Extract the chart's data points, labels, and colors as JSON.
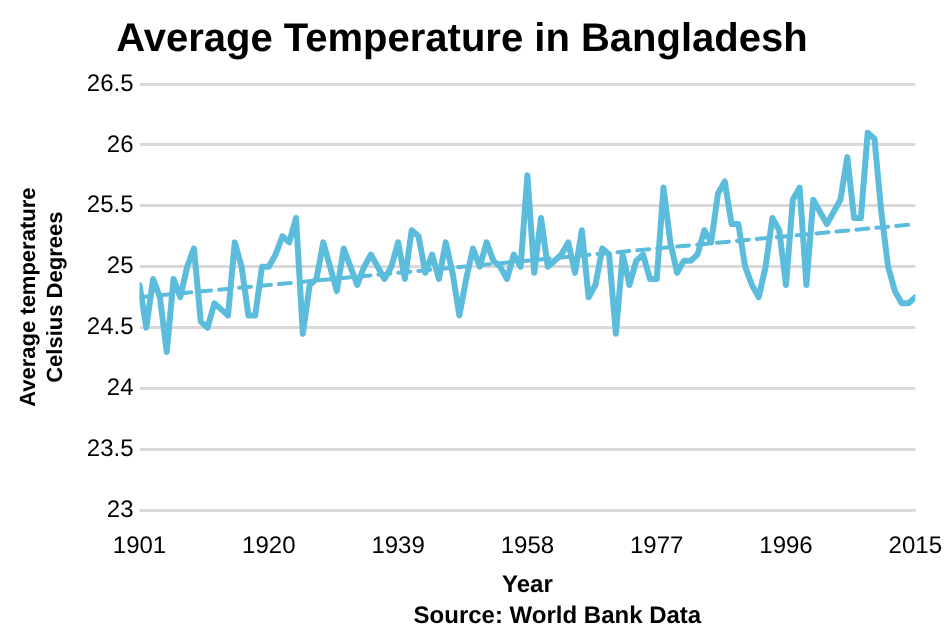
{
  "chart_data": {
    "type": "line",
    "title": "Average Temperature in Bangladesh",
    "xlabel": "Year",
    "ylabel": "Average temperature\nCelsius Degrees",
    "annotations": [
      "Source: World Bank Data"
    ],
    "x": [
      1901,
      1902,
      1903,
      1904,
      1905,
      1906,
      1907,
      1908,
      1909,
      1910,
      1911,
      1912,
      1913,
      1914,
      1915,
      1916,
      1917,
      1918,
      1919,
      1920,
      1921,
      1922,
      1923,
      1924,
      1925,
      1926,
      1927,
      1928,
      1929,
      1930,
      1931,
      1932,
      1933,
      1934,
      1935,
      1936,
      1937,
      1938,
      1939,
      1940,
      1941,
      1942,
      1943,
      1944,
      1945,
      1946,
      1947,
      1948,
      1949,
      1950,
      1951,
      1952,
      1953,
      1954,
      1955,
      1956,
      1957,
      1958,
      1959,
      1960,
      1961,
      1962,
      1963,
      1964,
      1965,
      1966,
      1967,
      1968,
      1969,
      1970,
      1971,
      1972,
      1973,
      1974,
      1975,
      1976,
      1977,
      1978,
      1979,
      1980,
      1981,
      1982,
      1983,
      1984,
      1985,
      1986,
      1987,
      1988,
      1989,
      1990,
      1991,
      1992,
      1993,
      1994,
      1995,
      1996,
      1997,
      1998,
      1999,
      2000,
      2001,
      2002,
      2003,
      2004,
      2005,
      2006,
      2007,
      2008,
      2009,
      2010,
      2011,
      2012,
      2013,
      2014,
      2015
    ],
    "series": [
      {
        "color": "#5bbcdc",
        "line_style": "solid",
        "values": [
          24.85,
          24.5,
          24.9,
          24.75,
          24.3,
          24.9,
          24.75,
          25.0,
          25.15,
          24.55,
          24.5,
          24.7,
          24.65,
          24.6,
          25.2,
          25.0,
          24.6,
          24.6,
          25.0,
          25.0,
          25.1,
          25.25,
          25.2,
          25.4,
          24.45,
          24.85,
          24.9,
          25.2,
          25.0,
          24.8,
          25.15,
          25.0,
          24.85,
          25.0,
          25.1,
          25.0,
          24.9,
          25.0,
          25.2,
          24.9,
          25.3,
          25.25,
          24.95,
          25.1,
          24.9,
          25.2,
          24.95,
          24.6,
          24.9,
          25.15,
          25.0,
          25.2,
          25.05,
          25.0,
          24.9,
          25.1,
          25.0,
          25.75,
          24.95,
          25.4,
          25.0,
          25.05,
          25.1,
          25.2,
          24.95,
          25.3,
          24.75,
          24.85,
          25.15,
          25.1,
          24.45,
          25.1,
          24.85,
          25.05,
          25.1,
          24.9,
          24.9,
          25.65,
          25.2,
          24.95,
          25.05,
          25.05,
          25.1,
          25.3,
          25.2,
          25.6,
          25.7,
          25.35,
          25.35,
          25.0,
          24.85,
          24.75,
          25.0,
          25.4,
          25.3,
          24.85,
          25.55,
          25.65,
          24.85,
          25.55,
          25.45,
          25.35,
          25.45,
          25.55,
          25.9,
          25.4,
          25.4,
          26.1,
          26.05,
          25.45,
          25.0,
          24.8,
          24.7,
          24.7,
          24.75
        ]
      },
      {
        "type": "line",
        "color": "#5bbcdc",
        "line_style": "dashed",
        "x": [
          1901,
          2015
        ],
        "values": [
          24.75,
          25.35
        ]
      }
    ],
    "xlim": [
      1901,
      2015
    ],
    "xticks": [
      1901,
      1920,
      1939,
      1958,
      1977,
      1996,
      2015
    ],
    "ylim": [
      23,
      26.5
    ],
    "yticks": [
      23,
      23.5,
      24,
      24.5,
      25,
      25.5,
      26,
      26.5
    ],
    "grid": "y",
    "legend": false,
    "marker": "none"
  }
}
